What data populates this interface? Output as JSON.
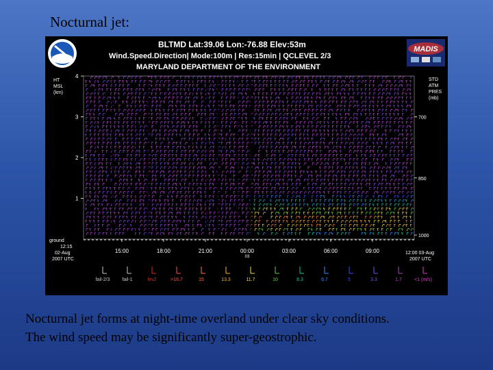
{
  "slide": {
    "title": "Nocturnal jet:",
    "caption_line1": "Nocturnal jet forms at night-time overland under clear sky conditions.",
    "caption_line2": "The wind speed may be significantly super-geostrophic."
  },
  "colors": {
    "background": "#2c54a8",
    "plot_background": "#000000",
    "header_text": "#ffffff",
    "barb_default": "#c04ad8"
  },
  "chart_data": {
    "type": "wind-profiler time-height barb plot",
    "header": {
      "line1": "BLTMD  Lat:39.06 Lon:-76.88 Elev:53m",
      "line2": "Wind.Speed.Direction| Mode:100m | Res:15min | QCLEVEL 2/3",
      "line3": "MARYLAND DEPARTMENT OF THE ENVIRONMENT"
    },
    "logos": {
      "left": "NOAA",
      "right": "MADIS"
    },
    "left_axis": {
      "label": [
        "HT",
        "MSL",
        "(km)"
      ],
      "ticks": [
        {
          "value": 4,
          "label": "4"
        },
        {
          "value": 3,
          "label": "3"
        },
        {
          "value": 2,
          "label": "2"
        },
        {
          "value": 1,
          "label": "1"
        }
      ],
      "ground_label": "ground",
      "ylim": [
        0,
        4
      ]
    },
    "right_axis": {
      "label": [
        "STD",
        "ATM",
        "PRES",
        "(mb)"
      ],
      "ticks": [
        {
          "height_km": 3.0,
          "label": "700"
        },
        {
          "height_km": 1.5,
          "label": "850"
        },
        {
          "height_km": 0.1,
          "label": "1000"
        }
      ]
    },
    "x_axis": {
      "start": [
        "12:15",
        "02-Aug",
        "2007 UTC"
      ],
      "end": [
        "12:00 03-Aug",
        "2007 UTC"
      ],
      "ticks": [
        {
          "hour": 15,
          "label": "15:00"
        },
        {
          "hour": 18,
          "label": "18:00"
        },
        {
          "hour": 21,
          "label": "21:00"
        },
        {
          "hour": 24,
          "label": "00:00",
          "sub": "03"
        },
        {
          "hour": 27,
          "label": "03:00"
        },
        {
          "hour": 30,
          "label": "06:00"
        },
        {
          "hour": 33,
          "label": "09:00"
        }
      ],
      "range_hours": [
        12.25,
        36
      ]
    },
    "speed_legend": {
      "flags": [
        {
          "label": "fail-2/3",
          "color": "#c8c8c8"
        },
        {
          "label": "fail-1",
          "color": "#c8c8c8"
        },
        {
          "label": "lev2",
          "color": "#d03030"
        },
        {
          "label": ">16.7",
          "color": "#ff4a4a"
        },
        {
          "label": "15",
          "color": "#ff7a3a"
        },
        {
          "label": "13.3",
          "color": "#ffb030"
        },
        {
          "label": "11.7",
          "color": "#f0e040"
        },
        {
          "label": "10",
          "color": "#60d040"
        },
        {
          "label": "8.3",
          "color": "#20c0a0"
        },
        {
          "label": "6.7",
          "color": "#3a8aff"
        },
        {
          "label": "5",
          "color": "#3a4aff"
        },
        {
          "label": "3.3",
          "color": "#7a4ae0"
        },
        {
          "label": "1.7",
          "color": "#b040c8"
        },
        {
          "label": "<1 (m/s)",
          "color": "#d040c0"
        }
      ]
    },
    "jet_core": {
      "time_range_hours": [
        24,
        36
      ],
      "height_range_km": [
        0.0,
        0.9
      ],
      "peak_color": "#ffb030"
    }
  }
}
